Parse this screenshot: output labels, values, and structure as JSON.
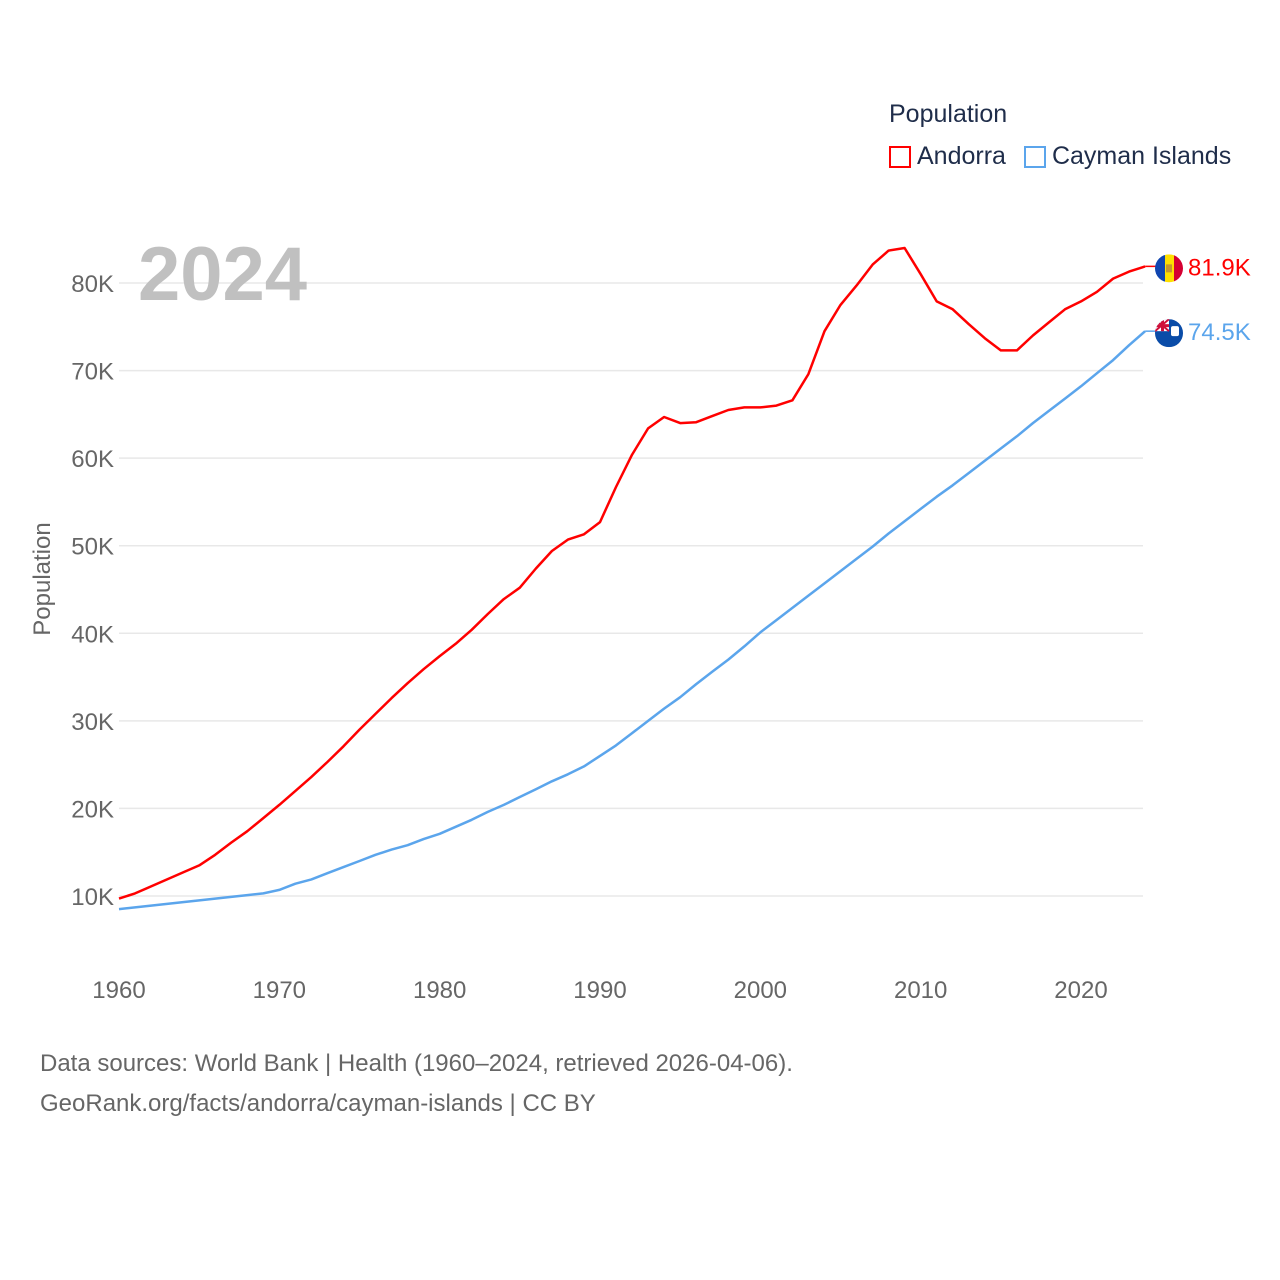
{
  "legend": {
    "title": "Population",
    "items": [
      {
        "label": "Andorra",
        "color": "#ff0000"
      },
      {
        "label": "Cayman Islands",
        "color": "#5ba5ec"
      }
    ]
  },
  "year_label": "2024",
  "footer": {
    "line1": "Data sources: World Bank | Health (1960–2024, retrieved 2026-04-06).",
    "line2": "GeoRank.org/facts/andorra/cayman-islands | CC BY"
  },
  "chart_data": {
    "type": "line",
    "title": "",
    "xlabel": "",
    "ylabel": "Population",
    "xlim": [
      1960,
      2024
    ],
    "ylim": [
      5000,
      85000
    ],
    "xticks": [
      1960,
      1970,
      1980,
      1990,
      2000,
      2010,
      2020
    ],
    "xtick_labels": [
      "1960",
      "1970",
      "1980",
      "1990",
      "2000",
      "2010",
      "2020"
    ],
    "yticks": [
      10000,
      20000,
      30000,
      40000,
      50000,
      60000,
      70000,
      80000
    ],
    "ytick_labels": [
      "10K",
      "20K",
      "30K",
      "40K",
      "50K",
      "60K",
      "70K",
      "80K"
    ],
    "grid": true,
    "legend_position": "top-right",
    "x": [
      1960,
      1961,
      1962,
      1963,
      1964,
      1965,
      1966,
      1967,
      1968,
      1969,
      1970,
      1971,
      1972,
      1973,
      1974,
      1975,
      1976,
      1977,
      1978,
      1979,
      1980,
      1981,
      1982,
      1983,
      1984,
      1985,
      1986,
      1987,
      1988,
      1989,
      1990,
      1991,
      1992,
      1993,
      1994,
      1995,
      1996,
      1997,
      1998,
      1999,
      2000,
      2001,
      2002,
      2003,
      2004,
      2005,
      2006,
      2007,
      2008,
      2009,
      2010,
      2011,
      2012,
      2013,
      2014,
      2015,
      2016,
      2017,
      2018,
      2019,
      2020,
      2021,
      2022,
      2023,
      2024
    ],
    "series": [
      {
        "name": "Andorra",
        "color": "#ff0000",
        "end_label": "81.9K",
        "values": [
          9700,
          10300,
          11100,
          11900,
          12700,
          13500,
          14700,
          16100,
          17400,
          18900,
          20400,
          22000,
          23600,
          25300,
          27100,
          29000,
          30800,
          32600,
          34300,
          35900,
          37400,
          38800,
          40400,
          42200,
          43900,
          45200,
          47400,
          49400,
          50700,
          51300,
          52700,
          56700,
          60400,
          63400,
          64700,
          64000,
          64100,
          64800,
          65500,
          65800,
          65800,
          66000,
          66600,
          69600,
          74500,
          77500,
          79700,
          82100,
          83700,
          84000,
          81000,
          77900,
          77000,
          75300,
          73700,
          72300,
          72300,
          74000,
          75500,
          77000,
          77900,
          79000,
          80500,
          81300,
          81900
        ]
      },
      {
        "name": "Cayman Islands",
        "color": "#5ba5ec",
        "end_label": "74.5K",
        "values": [
          8500,
          8700,
          8900,
          9100,
          9300,
          9500,
          9700,
          9900,
          10100,
          10300,
          10700,
          11400,
          11900,
          12600,
          13300,
          14000,
          14700,
          15300,
          15800,
          16500,
          17100,
          17900,
          18700,
          19600,
          20400,
          21300,
          22200,
          23100,
          23900,
          24800,
          26000,
          27200,
          28600,
          30000,
          31400,
          32700,
          34200,
          35600,
          37000,
          38500,
          40100,
          41500,
          42900,
          44300,
          45700,
          47100,
          48500,
          49900,
          51400,
          52800,
          54200,
          55600,
          56900,
          58300,
          59700,
          61100,
          62500,
          64000,
          65400,
          66800,
          68200,
          69700,
          71200,
          72900,
          74500
        ]
      }
    ]
  }
}
